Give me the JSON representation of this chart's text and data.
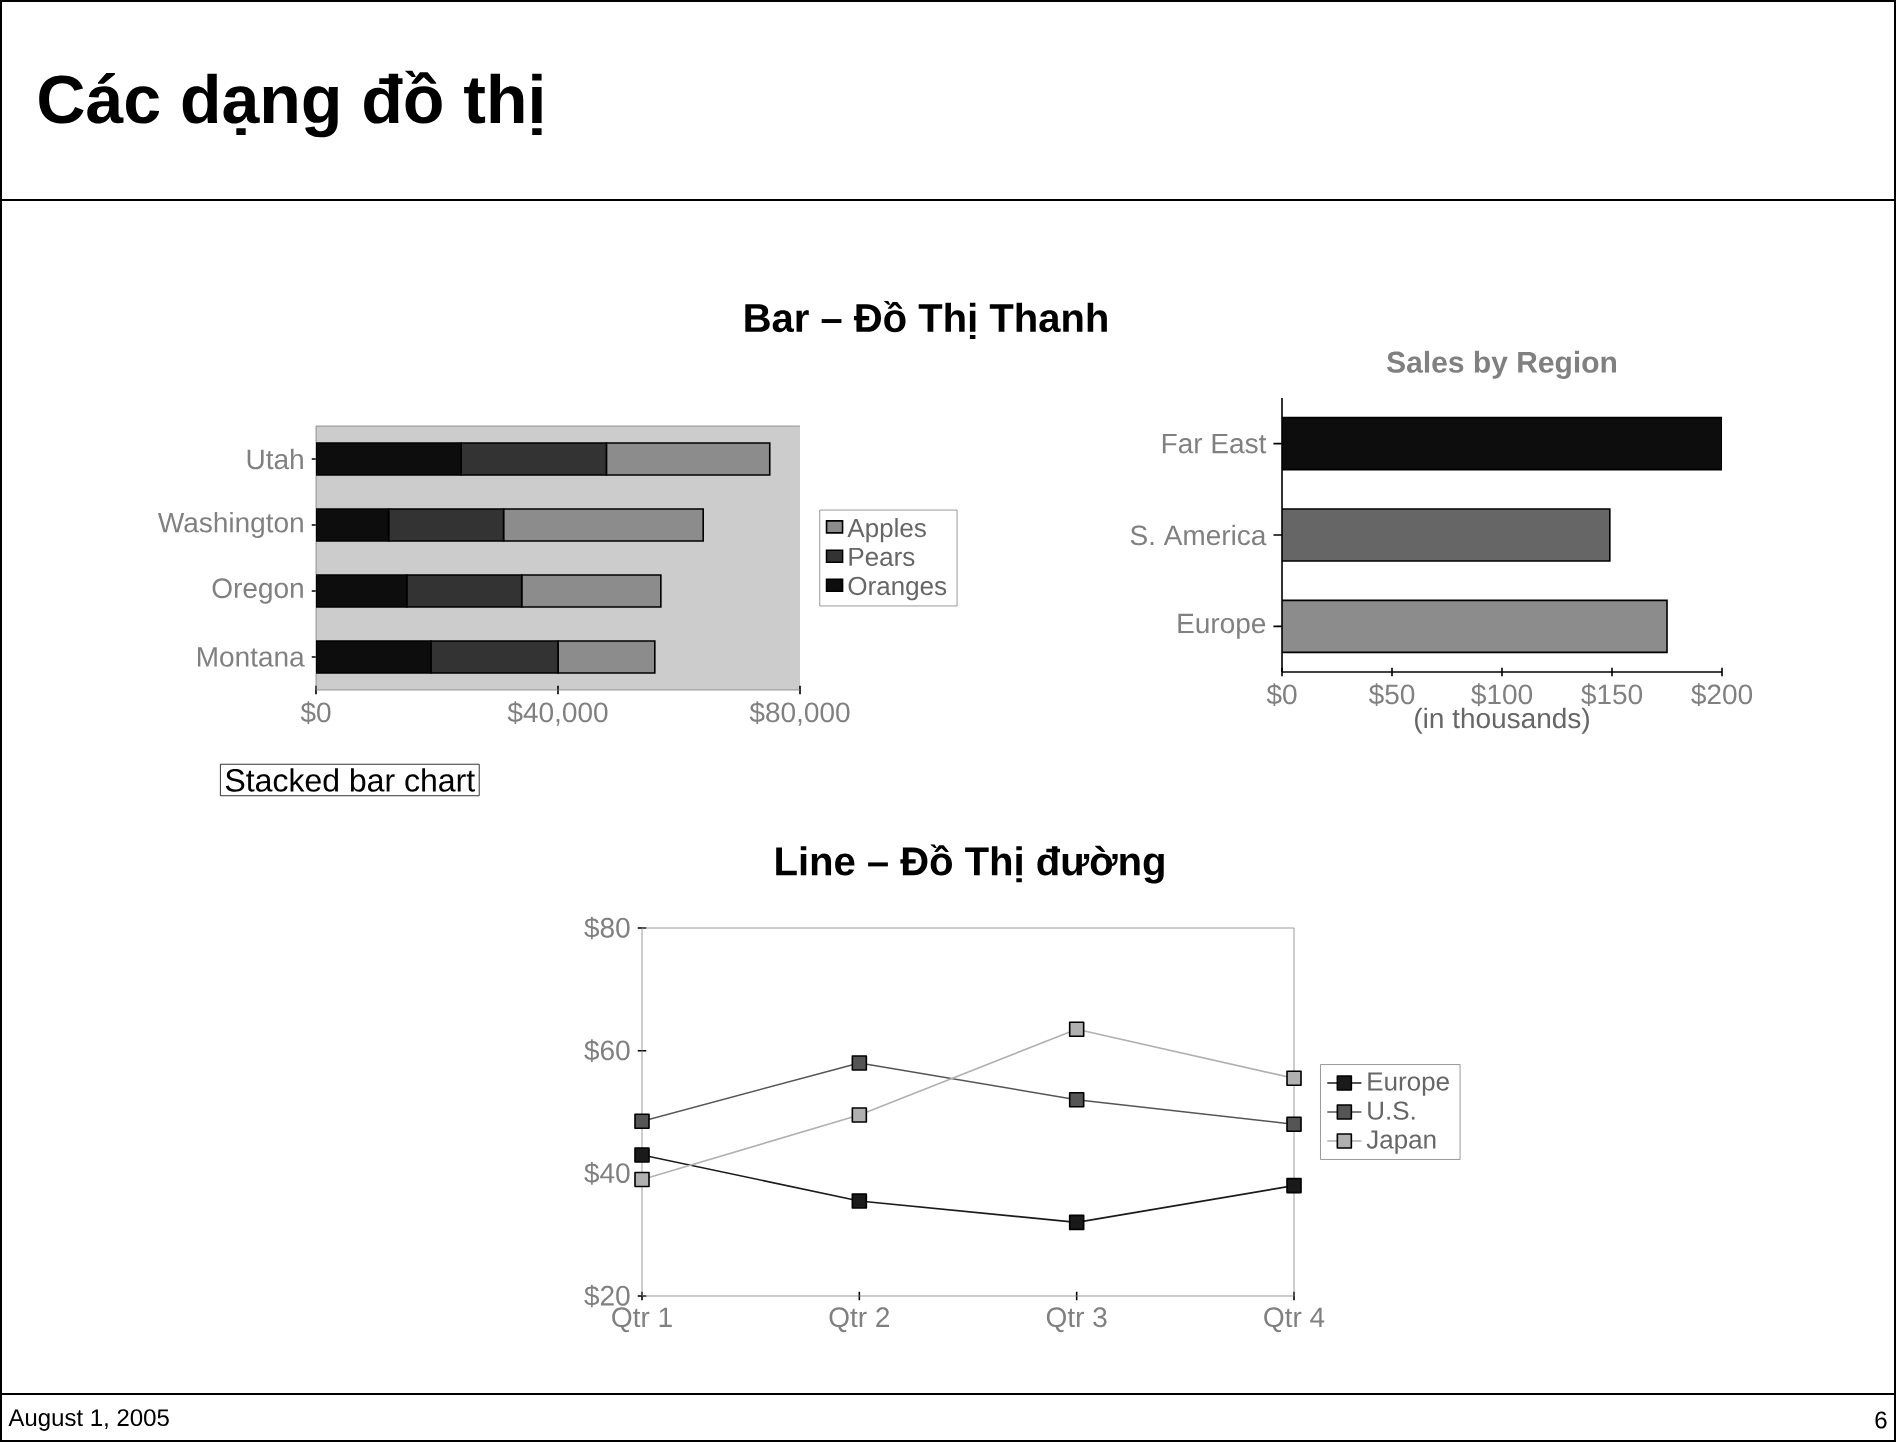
{
  "chart_data": [
    {
      "type": "bar",
      "orientation": "horizontal",
      "stacked": true,
      "title": "Các dạng đồ thị",
      "subtitle": "Bar – Đồ Thị Thanh",
      "categories": [
        "Utah",
        "Washington",
        "Oregon",
        "Montana"
      ],
      "series": [
        {
          "name": "Oranges",
          "color": "#0d0d0d",
          "values": [
            24000,
            12000,
            15000,
            19000
          ]
        },
        {
          "name": "Pears",
          "color": "#333333",
          "values": [
            24000,
            19000,
            19000,
            21000
          ]
        },
        {
          "name": "Apples",
          "color": "#8c8c8c",
          "values": [
            27000,
            33000,
            23000,
            16000
          ]
        }
      ],
      "xlim": [
        0,
        80000
      ],
      "xticks": [
        {
          "value": 0,
          "label": "$0"
        },
        {
          "value": 40000,
          "label": "$40,000"
        },
        {
          "value": 80000,
          "label": "$80,000"
        }
      ],
      "legend": "right",
      "annotations": [
        "Stacked bar chart",
        "August 1, 2005",
        "6"
      ]
    },
    {
      "type": "bar",
      "orientation": "horizontal",
      "title": "Sales by Region",
      "xlabel": "(in thousands)",
      "categories": [
        "Far East",
        "S. America",
        "Europe"
      ],
      "values": [
        200,
        149,
        175
      ],
      "colors": [
        "#0d0d0d",
        "#666666",
        "#8c8c8c"
      ],
      "xlim": [
        0,
        200
      ],
      "xticks": [
        {
          "value": 0,
          "label": "$0"
        },
        {
          "value": 50,
          "label": "$50"
        },
        {
          "value": 100,
          "label": "$100"
        },
        {
          "value": 150,
          "label": "$150"
        },
        {
          "value": 200,
          "label": "$200"
        }
      ]
    },
    {
      "type": "line",
      "subtitle": "Line – Đồ Thị đường",
      "categories": [
        "Qtr 1",
        "Qtr 2",
        "Qtr 3",
        "Qtr 4"
      ],
      "series": [
        {
          "name": "Europe",
          "color": "#1a1a1a",
          "values": [
            43,
            35.5,
            32,
            38
          ]
        },
        {
          "name": "U.S.",
          "color": "#555555",
          "values": [
            48.5,
            58,
            52,
            48
          ]
        },
        {
          "name": "Japan",
          "color": "#b0b0b0",
          "values": [
            39,
            49.5,
            63.5,
            55.5
          ]
        }
      ],
      "ylim": [
        20,
        80
      ],
      "yticks": [
        {
          "value": 20,
          "label": "$20"
        },
        {
          "value": 40,
          "label": "$40"
        },
        {
          "value": 60,
          "label": "$60"
        },
        {
          "value": 80,
          "label": "$80"
        }
      ],
      "marker": "square",
      "legend": "right"
    }
  ]
}
